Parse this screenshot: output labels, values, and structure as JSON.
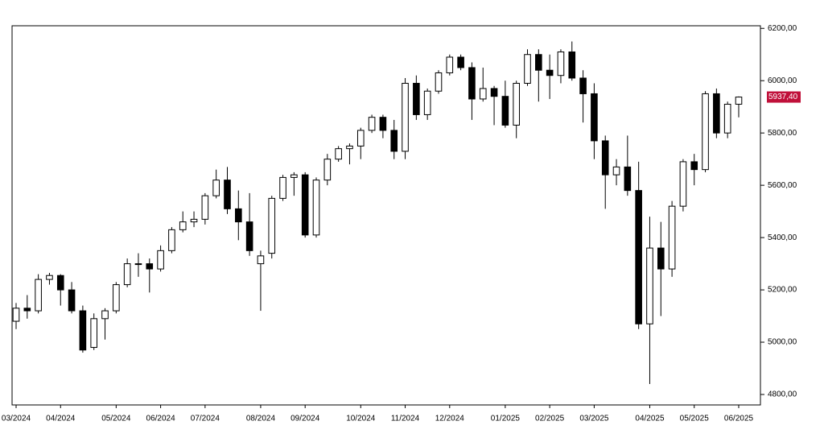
{
  "chart_data": {
    "type": "candlestick",
    "categories": [
      "03/2024",
      null,
      null,
      null,
      "04/2024",
      null,
      null,
      null,
      null,
      "05/2024",
      null,
      null,
      null,
      "06/2024",
      null,
      null,
      null,
      "07/2024",
      null,
      null,
      null,
      null,
      "08/2024",
      null,
      null,
      null,
      "09/2024",
      null,
      null,
      null,
      null,
      "10/2024",
      null,
      null,
      null,
      "11/2024",
      null,
      null,
      null,
      "12/2024",
      null,
      null,
      null,
      null,
      "01/2025",
      null,
      null,
      null,
      "02/2025",
      null,
      null,
      null,
      "03/2025",
      null,
      null,
      null,
      null,
      "04/2025",
      null,
      null,
      null,
      "05/2025",
      null,
      null,
      null,
      "06/2025"
    ],
    "open": [
      5080,
      5130,
      5120,
      5240,
      5255,
      5200,
      5120,
      4980,
      5090,
      5120,
      5220,
      5300,
      5300,
      5280,
      5350,
      5430,
      5460,
      5470,
      5560,
      5620,
      5510,
      5460,
      5300,
      5340,
      5550,
      5630,
      5640,
      5410,
      5620,
      5700,
      5740,
      5750,
      5810,
      5860,
      5810,
      5730,
      5990,
      5870,
      5960,
      6030,
      6090,
      6050,
      5930,
      5970,
      5940,
      5830,
      5990,
      6100,
      6040,
      6020,
      6110,
      6010,
      5950,
      5770,
      5640,
      5670,
      5580,
      5070,
      5360,
      5280,
      5520,
      5690,
      5660,
      5950,
      5800,
      5910
    ],
    "high": [
      5150,
      5180,
      5260,
      5265,
      5260,
      5230,
      5140,
      5110,
      5130,
      5230,
      5320,
      5340,
      5320,
      5370,
      5440,
      5500,
      5500,
      5570,
      5660,
      5670,
      5580,
      5570,
      5350,
      5560,
      5640,
      5650,
      5650,
      5630,
      5720,
      5750,
      5760,
      5820,
      5870,
      5870,
      5850,
      6010,
      6020,
      5970,
      6040,
      6100,
      6100,
      6070,
      6050,
      5980,
      6000,
      6000,
      6120,
      6120,
      6100,
      6120,
      6150,
      6040,
      5990,
      5790,
      5700,
      5790,
      5690,
      5480,
      5460,
      5540,
      5700,
      5720,
      5960,
      5970,
      5920,
      5940
    ],
    "low": [
      5050,
      5090,
      5110,
      5220,
      5140,
      5110,
      4960,
      4970,
      5010,
      5110,
      5210,
      5250,
      5190,
      5270,
      5340,
      5420,
      5440,
      5450,
      5550,
      5490,
      5390,
      5330,
      5120,
      5320,
      5540,
      5560,
      5400,
      5400,
      5600,
      5690,
      5680,
      5700,
      5800,
      5780,
      5700,
      5700,
      5850,
      5850,
      5950,
      6020,
      6040,
      5850,
      5920,
      5830,
      5820,
      5780,
      5980,
      5920,
      5930,
      5990,
      6000,
      5840,
      5700,
      5510,
      5600,
      5560,
      5050,
      4840,
      5100,
      5250,
      5500,
      5600,
      5650,
      5780,
      5780,
      5860
    ],
    "close": [
      5130,
      5120,
      5240,
      5255,
      5200,
      5120,
      4970,
      5090,
      5120,
      5220,
      5300,
      5300,
      5280,
      5350,
      5430,
      5460,
      5470,
      5560,
      5620,
      5510,
      5460,
      5350,
      5330,
      5550,
      5630,
      5640,
      5410,
      5620,
      5700,
      5740,
      5750,
      5810,
      5860,
      5810,
      5730,
      5990,
      5870,
      5960,
      6030,
      6090,
      6050,
      5930,
      5970,
      5940,
      5830,
      5990,
      6100,
      6040,
      6020,
      6110,
      6010,
      5950,
      5770,
      5640,
      5670,
      5580,
      5070,
      5360,
      5280,
      5520,
      5690,
      5660,
      5950,
      5800,
      5910,
      5937.4
    ],
    "up_color": "#ffffff",
    "down_color": "#000000",
    "ylim": [
      4760,
      6210
    ],
    "yticks": [
      {
        "value": 4800,
        "label": "4800,00"
      },
      {
        "value": 5000,
        "label": "5000,00"
      },
      {
        "value": 5200,
        "label": "5200,00"
      },
      {
        "value": 5400,
        "label": "5400,00"
      },
      {
        "value": 5600,
        "label": "5600,00"
      },
      {
        "value": 5800,
        "label": "5800,00"
      },
      {
        "value": 6000,
        "label": "6000,00"
      },
      {
        "value": 6200,
        "label": "6200,00"
      }
    ],
    "last_price": {
      "value": 5937.4,
      "label": "5937,40",
      "color": "#c0103a"
    }
  }
}
